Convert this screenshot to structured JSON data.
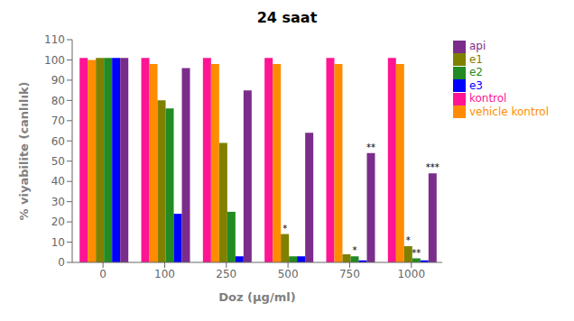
{
  "chart_data": {
    "type": "bar",
    "title": "24 saat",
    "xlabel": "Doz (μg/ml)",
    "ylabel": "% viyabilite (canlılık)",
    "categories": [
      "0",
      "100",
      "250",
      "500",
      "750",
      "1000"
    ],
    "series": [
      {
        "name": "kontrol",
        "color": "#FF1493",
        "values": [
          101,
          101,
          101,
          101,
          101,
          101
        ]
      },
      {
        "name": "vehicle kontrol",
        "color": "#FF8C00",
        "values": [
          100,
          98,
          98,
          98,
          98,
          98
        ]
      },
      {
        "name": "e1",
        "color": "#808000",
        "values": [
          101,
          80,
          59,
          14,
          4,
          8
        ]
      },
      {
        "name": "e2",
        "color": "#228B22",
        "values": [
          101,
          76,
          25,
          3,
          3,
          2
        ]
      },
      {
        "name": "e3",
        "color": "#0000FF",
        "values": [
          101,
          24,
          3,
          3,
          1,
          1
        ]
      },
      {
        "name": "api",
        "color": "#7B2D8B",
        "values": [
          101,
          96,
          85,
          64,
          54,
          44
        ]
      }
    ],
    "annotations": [
      {
        "group": "500",
        "series": "e1",
        "text": "*"
      },
      {
        "group": "750",
        "series": "e2",
        "text": "*"
      },
      {
        "group": "750",
        "series": "api",
        "text": "**"
      },
      {
        "group": "1000",
        "series": "e1",
        "text": "*"
      },
      {
        "group": "1000",
        "series": "e2",
        "text": "**"
      },
      {
        "group": "1000",
        "series": "api",
        "text": "***"
      }
    ],
    "ylim": [
      0,
      110
    ],
    "yticks": [
      0,
      10,
      20,
      30,
      40,
      50,
      60,
      70,
      80,
      90,
      100,
      110
    ],
    "grid": false,
    "legend": "right"
  }
}
